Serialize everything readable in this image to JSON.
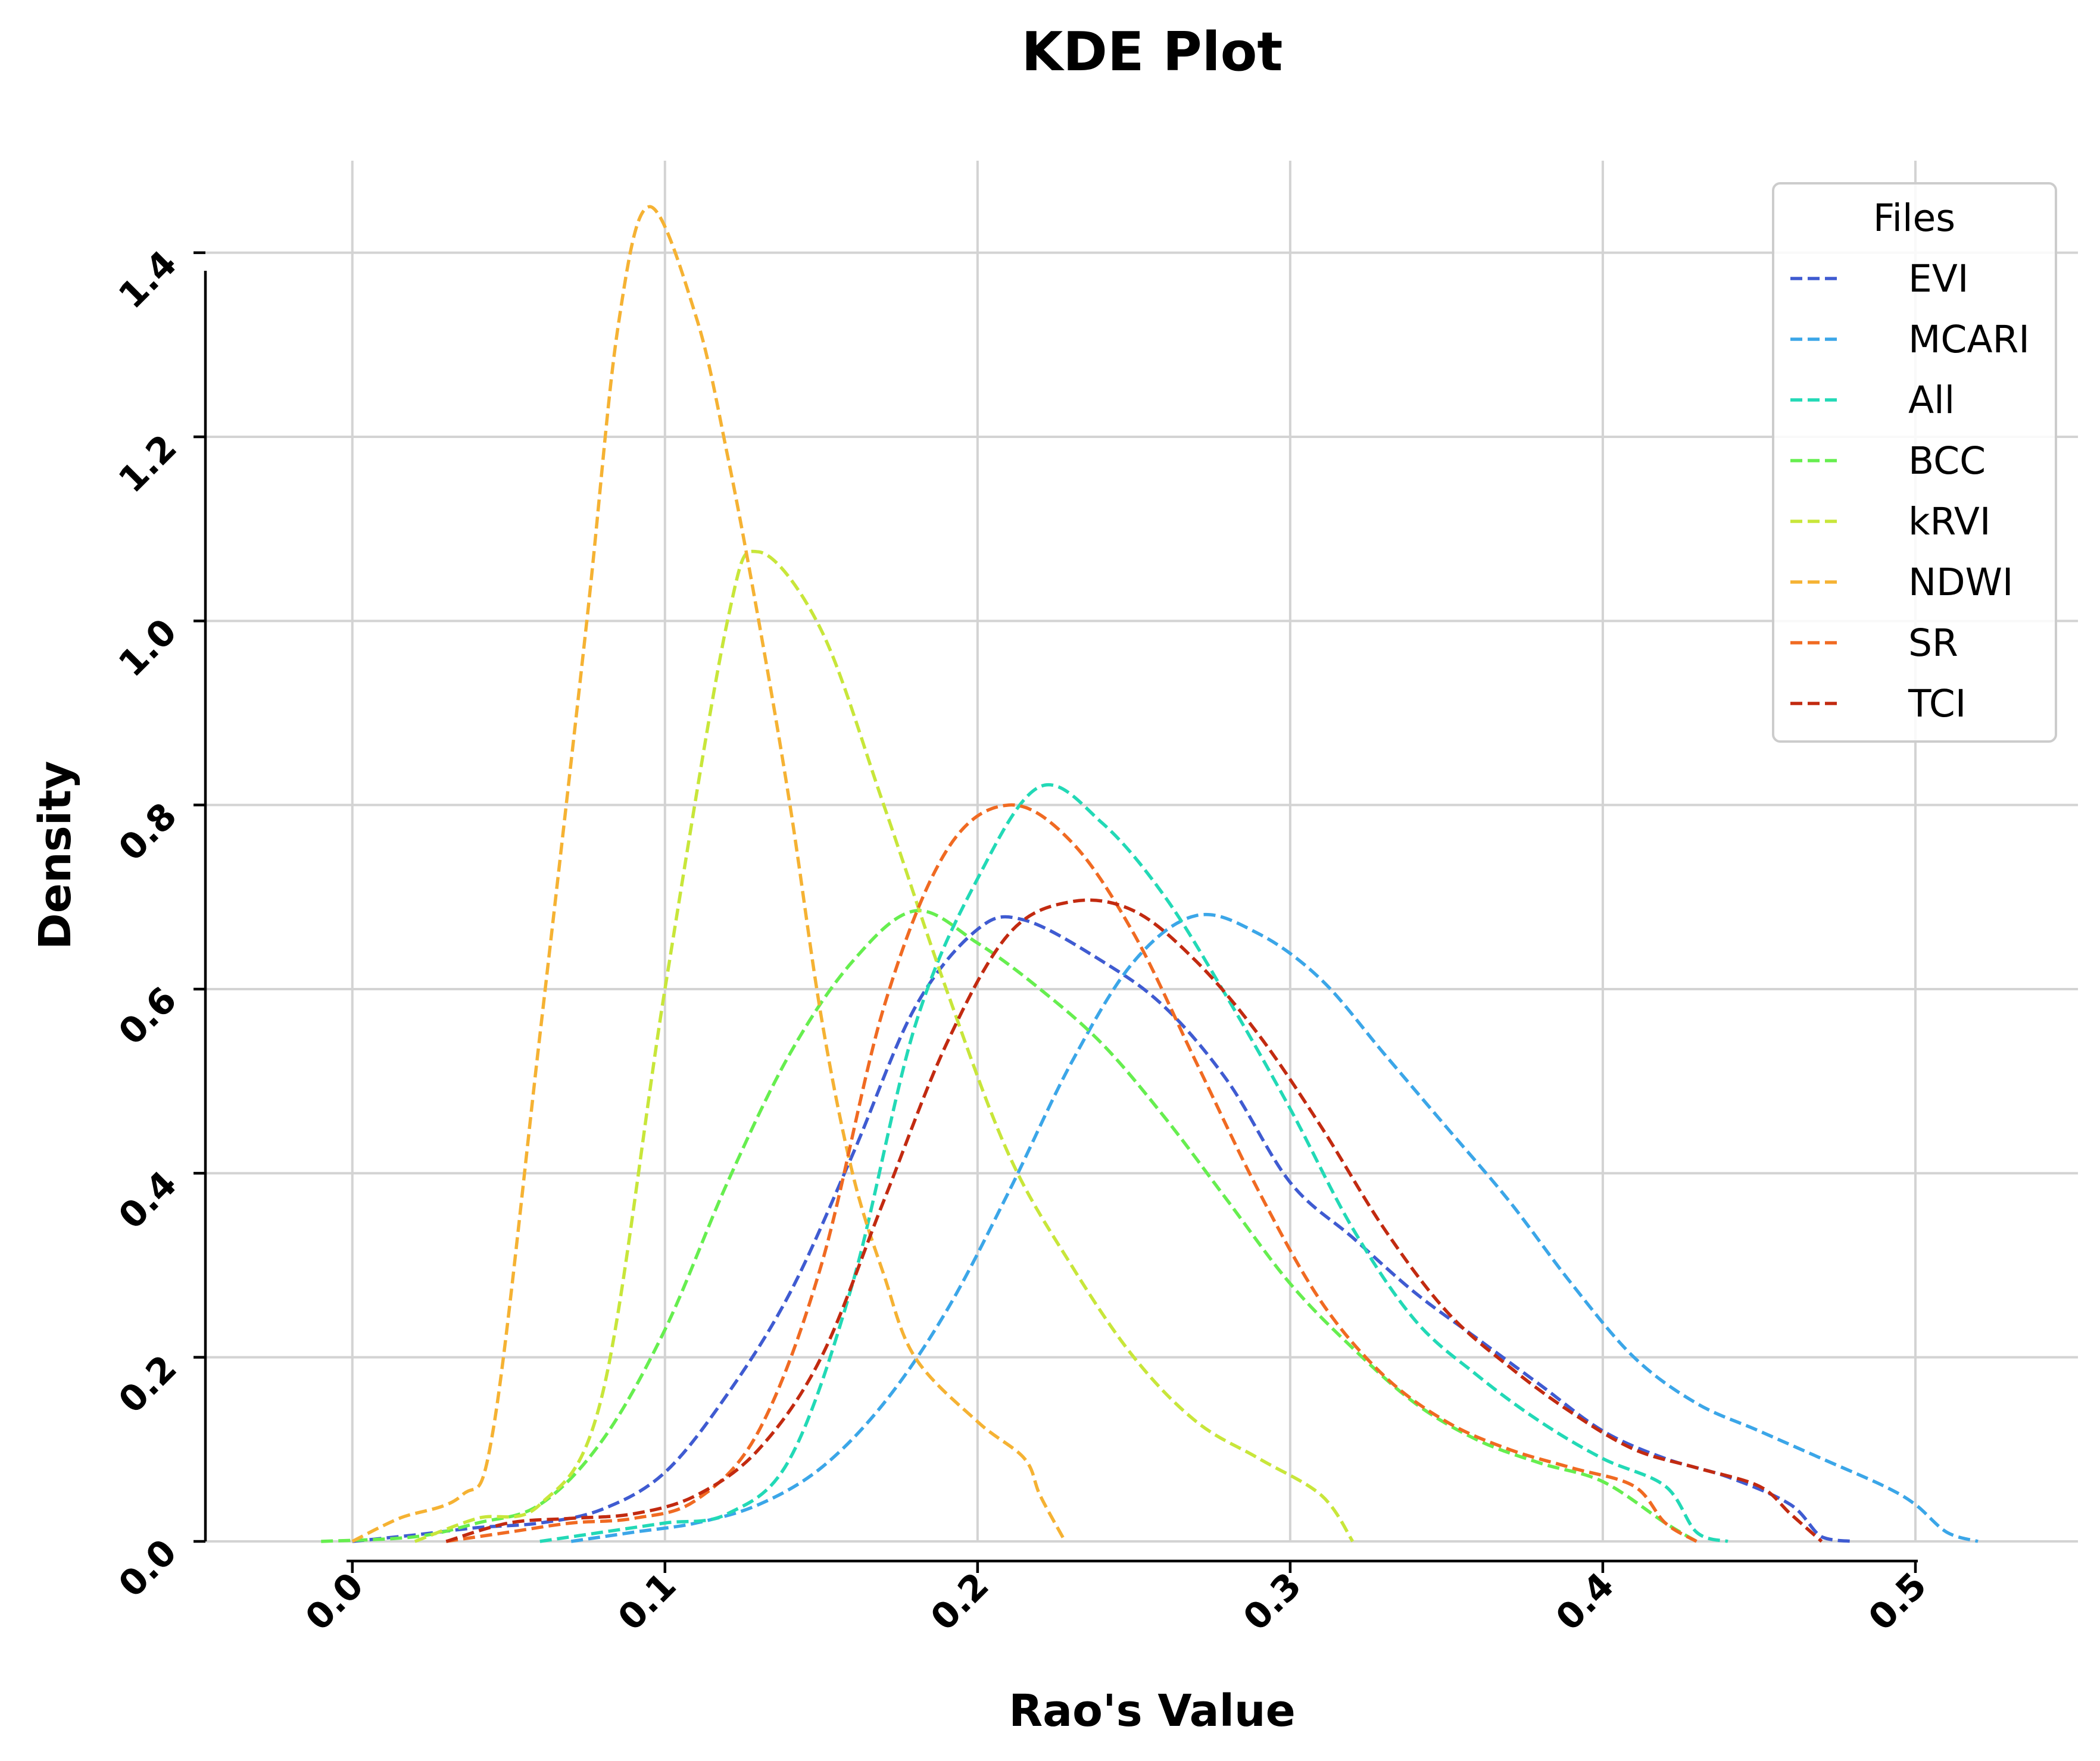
{
  "chart_data": {
    "type": "line",
    "title": "KDE Plot",
    "xlabel": "Rao's Value",
    "ylabel": "Density",
    "xlim": [
      -0.047,
      0.552
    ],
    "ylim": [
      0,
      1.5
    ],
    "xticks": [
      0.0,
      0.1,
      0.2,
      0.3,
      0.4,
      0.5
    ],
    "xtick_labels": [
      "0.0",
      "0.1",
      "0.2",
      "0.3",
      "0.4",
      "0.5"
    ],
    "yticks": [
      0.0,
      0.2,
      0.4,
      0.6,
      0.8,
      1.0,
      1.2,
      1.4
    ],
    "ytick_labels": [
      "0.0",
      "0.2",
      "0.4",
      "0.6",
      "0.8",
      "1.0",
      "1.2",
      "1.4"
    ],
    "grid": true,
    "line_style": "dashed",
    "legend": {
      "title": "Files",
      "position": "top-right"
    },
    "series": [
      {
        "name": "EVI",
        "color": "#3f5bd1",
        "points": [
          [
            0.0,
            0
          ],
          [
            0.02,
            0.007
          ],
          [
            0.04,
            0.015
          ],
          [
            0.06,
            0.02
          ],
          [
            0.08,
            0.035
          ],
          [
            0.1,
            0.075
          ],
          [
            0.12,
            0.16
          ],
          [
            0.14,
            0.27
          ],
          [
            0.16,
            0.42
          ],
          [
            0.18,
            0.58
          ],
          [
            0.2,
            0.665
          ],
          [
            0.215,
            0.675
          ],
          [
            0.24,
            0.63
          ],
          [
            0.26,
            0.58
          ],
          [
            0.28,
            0.5
          ],
          [
            0.3,
            0.39
          ],
          [
            0.32,
            0.33
          ],
          [
            0.34,
            0.27
          ],
          [
            0.36,
            0.22
          ],
          [
            0.38,
            0.17
          ],
          [
            0.4,
            0.12
          ],
          [
            0.42,
            0.09
          ],
          [
            0.44,
            0.07
          ],
          [
            0.46,
            0.04
          ],
          [
            0.47,
            0.005
          ],
          [
            0.48,
            0
          ]
        ]
      },
      {
        "name": "MCARI",
        "color": "#3ba6e8",
        "points": [
          [
            0.07,
            0
          ],
          [
            0.09,
            0.01
          ],
          [
            0.11,
            0.02
          ],
          [
            0.13,
            0.04
          ],
          [
            0.15,
            0.08
          ],
          [
            0.17,
            0.15
          ],
          [
            0.19,
            0.25
          ],
          [
            0.21,
            0.38
          ],
          [
            0.23,
            0.52
          ],
          [
            0.25,
            0.63
          ],
          [
            0.27,
            0.68
          ],
          [
            0.29,
            0.66
          ],
          [
            0.31,
            0.61
          ],
          [
            0.33,
            0.53
          ],
          [
            0.35,
            0.45
          ],
          [
            0.37,
            0.37
          ],
          [
            0.39,
            0.28
          ],
          [
            0.41,
            0.2
          ],
          [
            0.43,
            0.15
          ],
          [
            0.45,
            0.12
          ],
          [
            0.47,
            0.09
          ],
          [
            0.49,
            0.06
          ],
          [
            0.5,
            0.04
          ],
          [
            0.51,
            0.01
          ],
          [
            0.52,
            0
          ]
        ]
      },
      {
        "name": "All",
        "color": "#22d9b6",
        "points": [
          [
            0.06,
            0
          ],
          [
            0.08,
            0.01
          ],
          [
            0.1,
            0.02
          ],
          [
            0.12,
            0.03
          ],
          [
            0.14,
            0.09
          ],
          [
            0.16,
            0.28
          ],
          [
            0.18,
            0.56
          ],
          [
            0.2,
            0.72
          ],
          [
            0.22,
            0.82
          ],
          [
            0.24,
            0.78
          ],
          [
            0.26,
            0.7
          ],
          [
            0.28,
            0.59
          ],
          [
            0.3,
            0.47
          ],
          [
            0.32,
            0.34
          ],
          [
            0.34,
            0.24
          ],
          [
            0.36,
            0.18
          ],
          [
            0.38,
            0.13
          ],
          [
            0.4,
            0.09
          ],
          [
            0.42,
            0.06
          ],
          [
            0.43,
            0.01
          ],
          [
            0.44,
            0
          ]
        ]
      },
      {
        "name": "BCC",
        "color": "#66ee4f",
        "points": [
          [
            -0.01,
            0
          ],
          [
            0.02,
            0.005
          ],
          [
            0.04,
            0.02
          ],
          [
            0.06,
            0.04
          ],
          [
            0.08,
            0.11
          ],
          [
            0.1,
            0.23
          ],
          [
            0.12,
            0.39
          ],
          [
            0.14,
            0.53
          ],
          [
            0.16,
            0.63
          ],
          [
            0.18,
            0.685
          ],
          [
            0.2,
            0.65
          ],
          [
            0.22,
            0.6
          ],
          [
            0.24,
            0.54
          ],
          [
            0.26,
            0.46
          ],
          [
            0.28,
            0.37
          ],
          [
            0.3,
            0.28
          ],
          [
            0.32,
            0.21
          ],
          [
            0.34,
            0.15
          ],
          [
            0.36,
            0.11
          ],
          [
            0.38,
            0.085
          ],
          [
            0.4,
            0.065
          ],
          [
            0.42,
            0.02
          ],
          [
            0.43,
            0
          ]
        ]
      },
      {
        "name": "kRVI",
        "color": "#c8e63a",
        "points": [
          [
            0.02,
            0
          ],
          [
            0.04,
            0.025
          ],
          [
            0.06,
            0.04
          ],
          [
            0.08,
            0.16
          ],
          [
            0.1,
            0.6
          ],
          [
            0.12,
            1.0
          ],
          [
            0.13,
            1.075
          ],
          [
            0.15,
            0.99
          ],
          [
            0.17,
            0.8
          ],
          [
            0.19,
            0.6
          ],
          [
            0.21,
            0.42
          ],
          [
            0.23,
            0.3
          ],
          [
            0.25,
            0.2
          ],
          [
            0.27,
            0.13
          ],
          [
            0.29,
            0.09
          ],
          [
            0.31,
            0.05
          ],
          [
            0.32,
            0
          ]
        ]
      },
      {
        "name": "NDWI",
        "color": "#f5b233",
        "points": [
          [
            0.0,
            0
          ],
          [
            0.015,
            0.025
          ],
          [
            0.035,
            0.05
          ],
          [
            0.045,
            0.12
          ],
          [
            0.06,
            0.55
          ],
          [
            0.075,
            1.0
          ],
          [
            0.085,
            1.32
          ],
          [
            0.095,
            1.45
          ],
          [
            0.11,
            1.33
          ],
          [
            0.12,
            1.18
          ],
          [
            0.13,
            1.0
          ],
          [
            0.14,
            0.8
          ],
          [
            0.15,
            0.57
          ],
          [
            0.16,
            0.4
          ],
          [
            0.17,
            0.29
          ],
          [
            0.18,
            0.2
          ],
          [
            0.2,
            0.13
          ],
          [
            0.215,
            0.09
          ],
          [
            0.22,
            0.05
          ],
          [
            0.228,
            0
          ]
        ]
      },
      {
        "name": "SR",
        "color": "#f06a22",
        "points": [
          [
            0.03,
            0
          ],
          [
            0.05,
            0.01
          ],
          [
            0.07,
            0.02
          ],
          [
            0.09,
            0.025
          ],
          [
            0.11,
            0.045
          ],
          [
            0.13,
            0.12
          ],
          [
            0.15,
            0.3
          ],
          [
            0.17,
            0.58
          ],
          [
            0.19,
            0.75
          ],
          [
            0.21,
            0.8
          ],
          [
            0.23,
            0.76
          ],
          [
            0.25,
            0.66
          ],
          [
            0.27,
            0.52
          ],
          [
            0.29,
            0.38
          ],
          [
            0.31,
            0.26
          ],
          [
            0.33,
            0.18
          ],
          [
            0.35,
            0.13
          ],
          [
            0.37,
            0.1
          ],
          [
            0.39,
            0.08
          ],
          [
            0.41,
            0.06
          ],
          [
            0.42,
            0.02
          ],
          [
            0.43,
            0
          ]
        ]
      },
      {
        "name": "TCI",
        "color": "#c22a10",
        "points": [
          [
            0.03,
            0
          ],
          [
            0.05,
            0.02
          ],
          [
            0.07,
            0.025
          ],
          [
            0.09,
            0.03
          ],
          [
            0.11,
            0.05
          ],
          [
            0.13,
            0.1
          ],
          [
            0.15,
            0.2
          ],
          [
            0.17,
            0.37
          ],
          [
            0.19,
            0.54
          ],
          [
            0.21,
            0.66
          ],
          [
            0.23,
            0.695
          ],
          [
            0.25,
            0.685
          ],
          [
            0.27,
            0.63
          ],
          [
            0.29,
            0.55
          ],
          [
            0.31,
            0.45
          ],
          [
            0.33,
            0.34
          ],
          [
            0.35,
            0.25
          ],
          [
            0.37,
            0.19
          ],
          [
            0.39,
            0.14
          ],
          [
            0.41,
            0.1
          ],
          [
            0.43,
            0.08
          ],
          [
            0.45,
            0.06
          ],
          [
            0.46,
            0.03
          ],
          [
            0.47,
            0
          ]
        ]
      }
    ]
  }
}
